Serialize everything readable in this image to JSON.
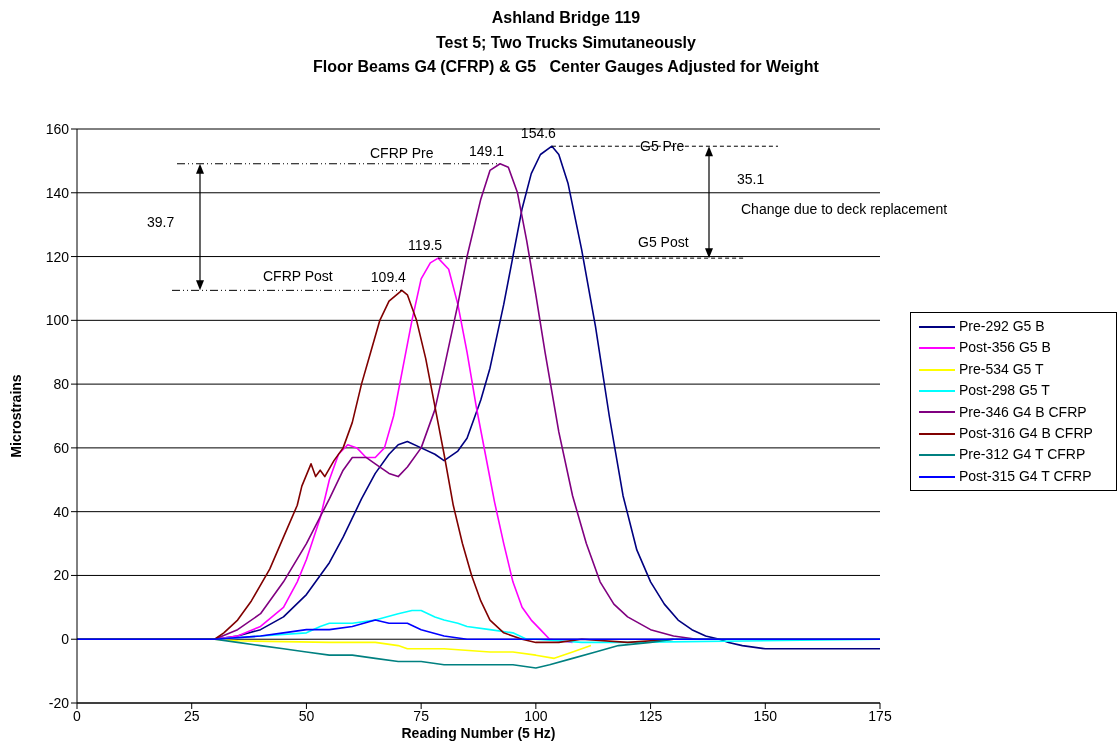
{
  "chart_data": {
    "type": "line",
    "title": "Ashland Bridge 119\nTest 5; Two Trucks Simutaneously\nFloor Beams G4 (CFRP) & G5   Center Gauges Adjusted for Weight",
    "xlabel": "Reading Number (5 Hz)",
    "ylabel": "Microstrains",
    "xlim": [
      0,
      175
    ],
    "xticks": [
      0,
      25,
      50,
      75,
      100,
      125,
      150,
      175
    ],
    "ylim": [
      -20,
      160
    ],
    "yticks": [
      -20,
      0,
      20,
      40,
      60,
      80,
      100,
      120,
      140,
      160
    ],
    "grid": "y",
    "legend": "right",
    "marker": "none",
    "line_style": "solid",
    "annotations": [
      "CFRP Pre",
      {
        "text": "149.1",
        "x": 92.2,
        "y": 149.1
      },
      {
        "text": "154.6",
        "x": 103.5,
        "y": 154.6
      },
      "G5 Pre",
      "35.1",
      "Change due to deck replacement",
      "39.7",
      {
        "text": "119.5",
        "x": 78.7,
        "y": 119.5
      },
      "G5 Post",
      "CFRP Post",
      {
        "text": "109.4",
        "x": 70.8,
        "y": 109.4
      }
    ],
    "series": [
      {
        "name": "Pre-292 G5 B",
        "color": "#000080",
        "x": [
          0,
          30,
          35,
          40,
          45,
          50,
          55,
          58,
          62,
          65,
          68,
          70,
          72,
          75,
          78,
          80,
          83,
          85,
          88,
          90,
          93,
          95,
          97,
          99,
          101,
          103.5,
          105,
          107,
          110,
          113,
          116,
          119,
          122,
          125,
          128,
          131,
          134,
          137,
          140,
          142,
          145,
          150,
          155,
          160,
          165,
          170,
          175
        ],
        "values": [
          0,
          0,
          1,
          3,
          7,
          14,
          24,
          32,
          44,
          52,
          58,
          61,
          62,
          60,
          58,
          56,
          59,
          63,
          75,
          85,
          105,
          120,
          135,
          146,
          152,
          154.6,
          152,
          143,
          122,
          98,
          70,
          45,
          28,
          18,
          11,
          6,
          3,
          1,
          0,
          -1,
          -2,
          -3,
          -3,
          -3,
          -3,
          -3,
          -3
        ]
      },
      {
        "name": "Post-356 G5 B",
        "color": "#ff00ff",
        "x": [
          0,
          30,
          35,
          40,
          45,
          48,
          50,
          53,
          55,
          57,
          59,
          61,
          63,
          65,
          67,
          69,
          71,
          73,
          75,
          77,
          78.7,
          81,
          83,
          85,
          87,
          89,
          91,
          93,
          95,
          97,
          99,
          101,
          103,
          108
        ],
        "values": [
          0,
          0,
          1,
          4,
          10,
          18,
          25,
          38,
          50,
          58,
          61,
          60,
          57,
          57,
          60,
          70,
          85,
          100,
          113,
          118,
          119.5,
          116,
          105,
          90,
          73,
          58,
          43,
          30,
          18,
          10,
          6,
          3,
          0,
          -1
        ]
      },
      {
        "name": "Pre-534 G5 T",
        "color": "#ffff00",
        "x": [
          0,
          30,
          35,
          55,
          65,
          70,
          72,
          80,
          90,
          95,
          100,
          104,
          108,
          112
        ],
        "values": [
          0,
          0,
          -0.5,
          -1,
          -1,
          -2,
          -3,
          -3,
          -4,
          -4,
          -5,
          -6,
          -4,
          -2
        ]
      },
      {
        "name": "Post-298 G5 T",
        "color": "#00ffff",
        "x": [
          0,
          30,
          40,
          50,
          53,
          55,
          60,
          65,
          70,
          73,
          75,
          78,
          80,
          83,
          85,
          90,
          95,
          98,
          100,
          110,
          120,
          175
        ],
        "values": [
          0,
          0,
          1,
          2,
          4,
          5,
          5,
          6,
          8,
          9,
          9,
          7,
          6,
          5,
          4,
          3,
          2,
          0,
          0,
          -1,
          -1,
          0
        ]
      },
      {
        "name": "Pre-346 G4 B CFRP",
        "color": "#800080",
        "x": [
          0,
          30,
          35,
          40,
          45,
          50,
          55,
          58,
          60,
          63,
          65,
          68,
          70,
          72,
          75,
          78,
          80,
          83,
          85,
          88,
          90,
          92.2,
          94,
          96,
          98,
          100,
          102,
          105,
          108,
          111,
          114,
          117,
          120,
          125,
          130,
          135,
          175
        ],
        "values": [
          0,
          0,
          3,
          8,
          18,
          30,
          44,
          53,
          57,
          57,
          55,
          52,
          51,
          54,
          60,
          72,
          85,
          105,
          120,
          138,
          147,
          149.1,
          148,
          140,
          125,
          108,
          90,
          65,
          45,
          30,
          18,
          11,
          7,
          3,
          1,
          0,
          0
        ]
      },
      {
        "name": "Post-316 G4 B CFRP",
        "color": "#800000",
        "x": [
          0,
          30,
          32,
          35,
          38,
          42,
          45,
          48,
          49,
          51,
          52,
          53,
          54,
          56,
          58,
          60,
          62,
          64,
          66,
          68,
          70.8,
          72,
          74,
          76,
          78,
          80,
          82,
          84,
          86,
          88,
          90,
          93,
          97,
          100,
          105,
          110,
          120,
          130
        ],
        "values": [
          0,
          0,
          2,
          6,
          12,
          22,
          32,
          42,
          48,
          55,
          51,
          53,
          51,
          56,
          60,
          68,
          80,
          90,
          100,
          106,
          109.4,
          108,
          100,
          88,
          73,
          58,
          42,
          30,
          20,
          12,
          6,
          2,
          0,
          -1,
          -1,
          0,
          -1,
          0
        ]
      },
      {
        "name": "Pre-312 G4 T CFRP",
        "color": "#008080",
        "x": [
          0,
          30,
          35,
          40,
          45,
          50,
          55,
          60,
          65,
          70,
          75,
          80,
          85,
          90,
          95,
          100,
          103,
          108,
          113,
          118,
          125,
          130,
          175
        ],
        "values": [
          0,
          0,
          -1,
          -2,
          -3,
          -4,
          -5,
          -5,
          -6,
          -7,
          -7,
          -8,
          -8,
          -8,
          -8,
          -9,
          -8,
          -6,
          -4,
          -2,
          -1,
          0,
          0
        ]
      },
      {
        "name": "Post-315 G4 T CFRP",
        "color": "#0000ff",
        "x": [
          0,
          30,
          40,
          45,
          50,
          55,
          60,
          65,
          68,
          70,
          72,
          75,
          80,
          85,
          100,
          175
        ],
        "values": [
          0,
          0,
          1,
          2,
          3,
          3,
          4,
          6,
          5,
          5,
          5,
          3,
          1,
          0,
          0,
          0
        ]
      }
    ]
  }
}
